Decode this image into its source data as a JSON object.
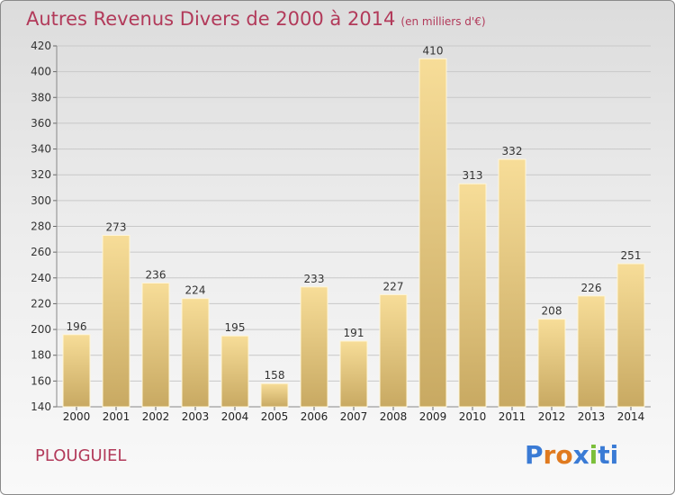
{
  "title": "Autres Revenus Divers de 2000 à 2014",
  "unit_note": "(en milliers d'€)",
  "commune": "PLOUGUIEL",
  "logo": {
    "text": "Proxiti",
    "letters": [
      "P",
      "r",
      "o",
      "x",
      "i",
      "t",
      "i"
    ],
    "colors": [
      "#3a7bd5",
      "#e07a1f",
      "#e07a1f",
      "#3a7bd5",
      "#7bbf3a",
      "#3a7bd5",
      "#3a7bd5"
    ]
  },
  "colors": {
    "title": "#b23a5a",
    "bar_top": "#f7dd98",
    "bar_bottom": "#c8a962",
    "grid": "#c8c8c8"
  },
  "chart_data": {
    "type": "bar",
    "categories": [
      "2000",
      "2001",
      "2002",
      "2003",
      "2004",
      "2005",
      "2006",
      "2007",
      "2008",
      "2009",
      "2010",
      "2011",
      "2012",
      "2013",
      "2014"
    ],
    "values": [
      196,
      273,
      236,
      224,
      195,
      158,
      233,
      191,
      227,
      410,
      313,
      332,
      208,
      226,
      251
    ],
    "ylim": [
      140,
      420
    ],
    "yticks": [
      140,
      160,
      180,
      200,
      220,
      240,
      260,
      280,
      300,
      320,
      340,
      360,
      380,
      400,
      420
    ],
    "grid": true,
    "data_labels": true
  }
}
